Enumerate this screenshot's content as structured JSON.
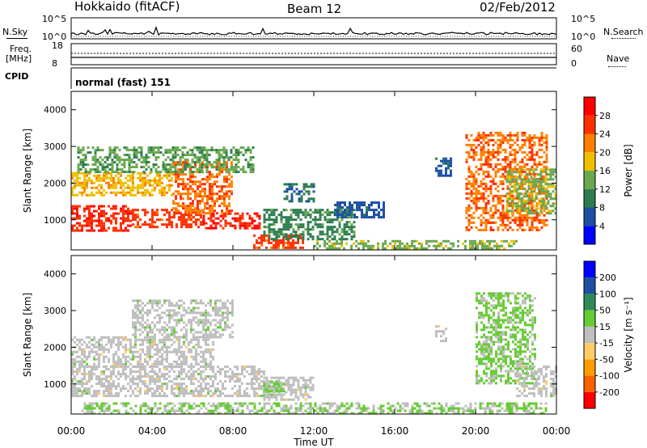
{
  "header": {
    "station": "Hokkaido (fitACF)",
    "beam": "Beam 12",
    "date": "02/Feb/2012"
  },
  "aux": {
    "nsky_label": "N.Sky",
    "nsearch_label": "N.Search",
    "freq_label": "Freq.",
    "freq_unit": "[MHz]",
    "nave_label": "Nave",
    "cpid_label": "CPID",
    "cpid_value": "normal (fast) 151",
    "noise_ticks": [
      "10^5",
      "10^0"
    ],
    "freq_ticks": [
      "18",
      "8"
    ],
    "nave_ticks": [
      "60",
      "0"
    ]
  },
  "x_axis": {
    "label": "Time UT",
    "ticks": [
      "00:00",
      "04:00",
      "08:00",
      "12:00",
      "16:00",
      "20:00",
      "00:00"
    ]
  },
  "colors": {
    "power": [
      "#0000ff",
      "#1c4fa3",
      "#2e7d4f",
      "#6aa84f",
      "#f0c000",
      "#ff8000",
      "#ff3000",
      "#ff0000"
    ],
    "velocity": [
      "#ff0000",
      "#ff6000",
      "#ff9a00",
      "#ffcc66",
      "#bfbfbf",
      "#66cc33",
      "#2e8b57",
      "#1c4fa3",
      "#0000ff"
    ]
  },
  "chart_data": [
    {
      "type": "heatmap",
      "title": "",
      "xlabel": "",
      "ylabel": "Slant Range [km]",
      "xlim": [
        0,
        24
      ],
      "ylim": [
        180,
        4500
      ],
      "yticks": [
        1000,
        2000,
        3000,
        4000
      ],
      "colorbar": {
        "label": "Power [dB]",
        "ticks": [
          "4",
          "8",
          "12",
          "16",
          "20",
          "24",
          "28"
        ],
        "range": [
          0,
          30
        ]
      },
      "features": [
        {
          "t0": 0.0,
          "t1": 3.0,
          "r0": 700,
          "r1": 1400,
          "level": 26
        },
        {
          "t0": 3.0,
          "t1": 6.5,
          "r0": 800,
          "r1": 1300,
          "level": 24
        },
        {
          "t0": 6.5,
          "t1": 9.5,
          "r0": 800,
          "r1": 1200,
          "level": 26
        },
        {
          "t0": 9.0,
          "t1": 11.5,
          "r0": 250,
          "r1": 600,
          "level": 24
        },
        {
          "t0": 0.0,
          "t1": 5.0,
          "r0": 1700,
          "r1": 2300,
          "level": 18
        },
        {
          "t0": 5.0,
          "t1": 8.0,
          "r0": 1200,
          "r1": 2600,
          "level": 22
        },
        {
          "t0": 0.3,
          "t1": 9.0,
          "r0": 2300,
          "r1": 3000,
          "level": 12
        },
        {
          "t0": 9.5,
          "t1": 14.0,
          "r0": 500,
          "r1": 1300,
          "level": 10
        },
        {
          "t0": 10.5,
          "t1": 12.0,
          "r0": 1500,
          "r1": 2000,
          "level": 8
        },
        {
          "t0": 13.0,
          "t1": 15.5,
          "r0": 1100,
          "r1": 1500,
          "level": 6
        },
        {
          "t0": 12.0,
          "t1": 22.0,
          "r0": 200,
          "r1": 450,
          "level": 14
        },
        {
          "t0": 18.0,
          "t1": 18.8,
          "r0": 2200,
          "r1": 2700,
          "level": 6
        },
        {
          "t0": 19.5,
          "t1": 23.5,
          "r0": 700,
          "r1": 3400,
          "level": 22
        },
        {
          "t0": 21.5,
          "t1": 24.0,
          "r0": 1200,
          "r1": 2400,
          "level": 14
        }
      ]
    },
    {
      "type": "heatmap",
      "title": "",
      "xlabel": "Time UT",
      "ylabel": "Slant Range [km]",
      "xlim": [
        0,
        24
      ],
      "ylim": [
        180,
        4500
      ],
      "yticks": [
        1000,
        2000,
        3000,
        4000
      ],
      "colorbar": {
        "label": "Velocity [m s⁻¹]",
        "ticks": [
          "200",
          "100",
          "50",
          "15",
          "-15",
          "-50",
          "-100",
          "-200"
        ],
        "range": [
          -250,
          250
        ]
      },
      "features": [
        {
          "t0": 0.0,
          "t1": 9.5,
          "r0": 700,
          "r1": 1500,
          "level": 0
        },
        {
          "t0": 0.0,
          "t1": 7.0,
          "r0": 1500,
          "r1": 2300,
          "level": 0
        },
        {
          "t0": 3.0,
          "t1": 8.0,
          "r0": 2300,
          "r1": 3300,
          "level": 5
        },
        {
          "t0": 9.5,
          "t1": 12.0,
          "r0": 600,
          "r1": 1200,
          "level": 0
        },
        {
          "t0": 0.5,
          "t1": 23.5,
          "r0": 200,
          "r1": 500,
          "level": 30
        },
        {
          "t0": 9.5,
          "t1": 10.5,
          "r0": 800,
          "r1": 1100,
          "level": 40
        },
        {
          "t0": 20.0,
          "t1": 23.0,
          "r0": 1000,
          "r1": 3500,
          "level": 40
        },
        {
          "t0": 22.0,
          "t1": 24.0,
          "r0": 700,
          "r1": 1500,
          "level": 0
        },
        {
          "t0": 18.0,
          "t1": 18.5,
          "r0": 2200,
          "r1": 2600,
          "level": 0
        }
      ]
    }
  ]
}
